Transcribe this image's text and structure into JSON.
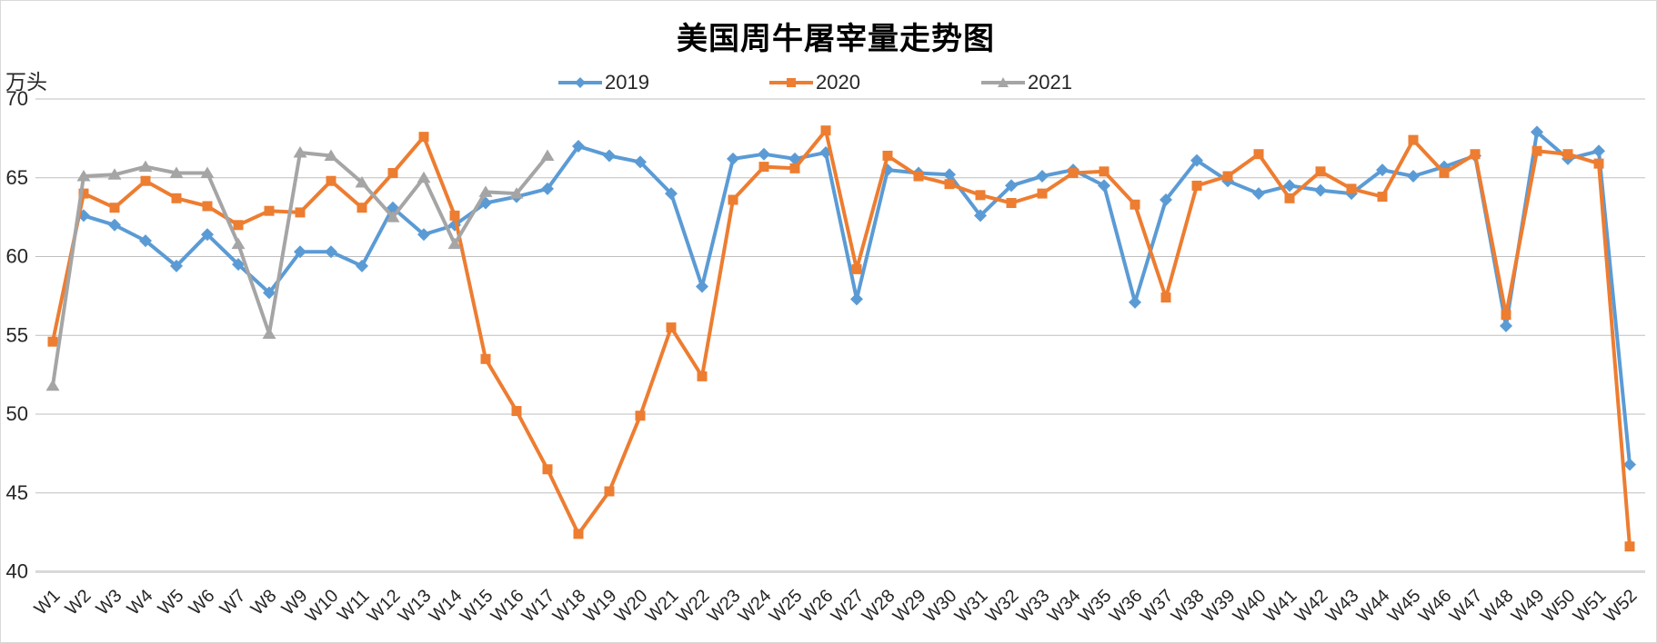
{
  "chart_data": {
    "type": "line",
    "title": "美国周牛屠宰量走势图",
    "unit_label": "万头",
    "grid": true,
    "legend_position": "top",
    "categories": [
      "W1",
      "W2",
      "W3",
      "W4",
      "W5",
      "W6",
      "W7",
      "W8",
      "W9",
      "W10",
      "W11",
      "W12",
      "W13",
      "W14",
      "W15",
      "W16",
      "W17",
      "W18",
      "W19",
      "W20",
      "W21",
      "W22",
      "W23",
      "W24",
      "W25",
      "W26",
      "W27",
      "W28",
      "W29",
      "W30",
      "W31",
      "W32",
      "W33",
      "W34",
      "W35",
      "W36",
      "W37",
      "W38",
      "W39",
      "W40",
      "W41",
      "W42",
      "W43",
      "W44",
      "W45",
      "W46",
      "W47",
      "W48",
      "W49",
      "W50",
      "W51",
      "W52"
    ],
    "y_axis": {
      "min": 40,
      "max": 70,
      "step": 5,
      "ticks": [
        70,
        65,
        60,
        55,
        50,
        45,
        40
      ]
    },
    "colors": {
      "gridline": "#bfbfbf",
      "axis_line": "#d9d9d9",
      "text": "#262626"
    },
    "series": [
      {
        "name": "2019",
        "color": "#5B9BD5",
        "marker": "diamond",
        "values": [
          null,
          62.6,
          62.0,
          61.0,
          59.4,
          61.4,
          59.5,
          57.7,
          60.3,
          60.3,
          59.4,
          63.1,
          61.4,
          62.0,
          63.4,
          63.8,
          64.3,
          67.0,
          66.4,
          66.0,
          64.0,
          58.1,
          66.2,
          66.5,
          66.2,
          66.6,
          57.3,
          65.5,
          65.3,
          65.2,
          62.6,
          64.5,
          65.1,
          65.5,
          64.5,
          57.1,
          63.6,
          66.1,
          64.8,
          64.0,
          64.5,
          64.2,
          64.0,
          65.5,
          65.1,
          65.7,
          66.4,
          55.6,
          67.9,
          66.2,
          66.7,
          46.8
        ]
      },
      {
        "name": "2020",
        "color": "#ED7D31",
        "marker": "square",
        "values": [
          54.6,
          64.0,
          63.1,
          64.8,
          63.7,
          63.2,
          62.0,
          62.9,
          62.8,
          64.8,
          63.1,
          65.3,
          67.6,
          62.6,
          53.5,
          50.2,
          46.5,
          42.4,
          45.1,
          49.9,
          55.5,
          52.4,
          63.6,
          65.7,
          65.6,
          68.0,
          59.2,
          66.4,
          65.1,
          64.6,
          63.9,
          63.4,
          64.0,
          65.3,
          65.4,
          63.3,
          57.4,
          64.5,
          65.1,
          66.5,
          63.7,
          65.4,
          64.3,
          63.8,
          67.4,
          65.3,
          66.5,
          56.3,
          66.7,
          66.5,
          65.9,
          41.6
        ]
      },
      {
        "name": "2021",
        "color": "#A5A5A5",
        "marker": "triangle",
        "values": [
          51.8,
          65.1,
          65.2,
          65.7,
          65.3,
          65.3,
          60.8,
          55.1,
          66.6,
          66.4,
          64.7,
          62.5,
          65.0,
          60.8,
          64.1,
          64.0,
          66.4,
          null,
          null,
          null,
          null,
          null,
          null,
          null,
          null,
          null,
          null,
          null,
          null,
          null,
          null,
          null,
          null,
          null,
          null,
          null,
          null,
          null,
          null,
          null,
          null,
          null,
          null,
          null,
          null,
          null,
          null,
          null,
          null,
          null,
          null,
          null
        ]
      }
    ]
  }
}
